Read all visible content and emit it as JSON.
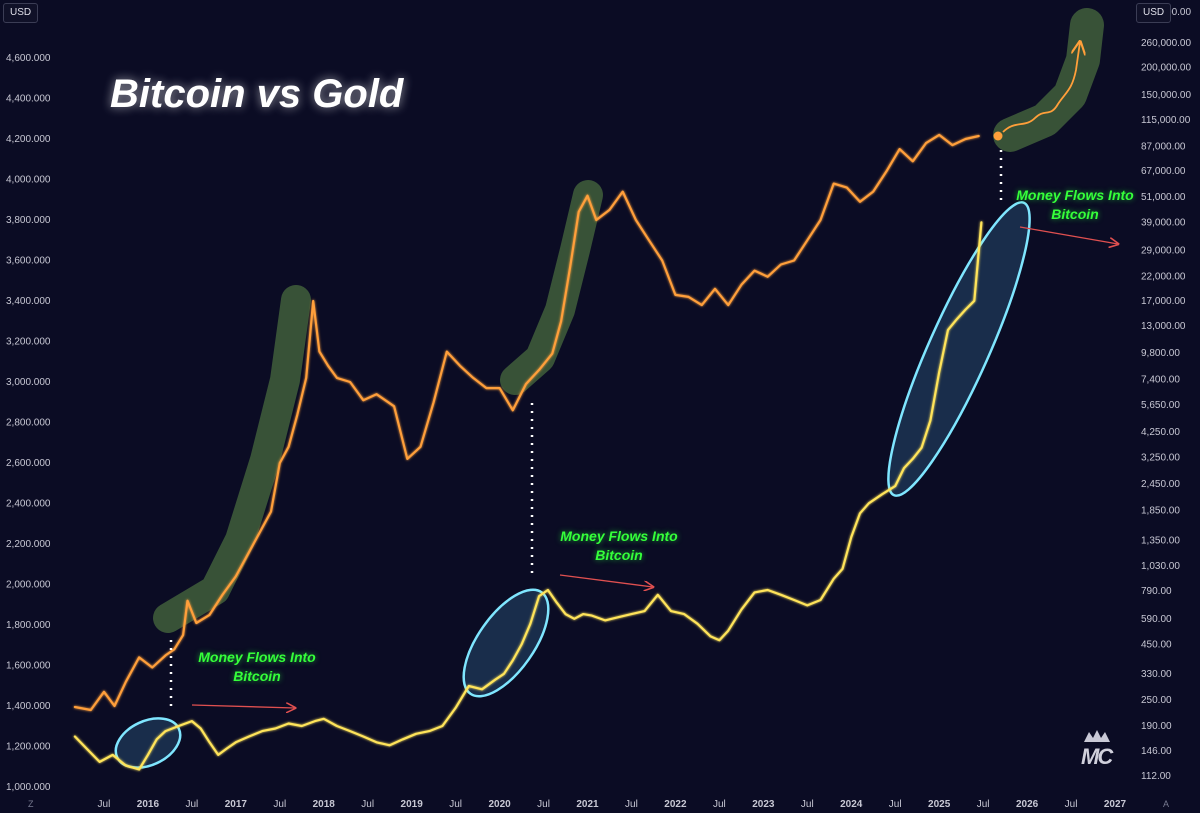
{
  "title": "Bitcoin vs Gold",
  "currency_left": "USD",
  "currency_right": "USD",
  "annotations": [
    {
      "line1": "Money Flows Into",
      "line2": "Bitcoin"
    },
    {
      "line1": "Money Flows Into",
      "line2": "Bitcoin"
    },
    {
      "line1": "Money Flows Into",
      "line2": "Bitcoin"
    }
  ],
  "corner_labels": {
    "left": "Z",
    "right": "A"
  },
  "logo_text": "MC",
  "colors": {
    "background": "#0b0c24",
    "gold_series": "#ff9f3a",
    "bitcoin_series": "#ffe45a",
    "highlight_gold": "#3d5a3a",
    "highlight_btc": "#7fe6ff",
    "annotation_text": "#35ff3a",
    "arrow": "#e05050"
  },
  "chart_data": {
    "type": "line",
    "title": "Bitcoin vs Gold",
    "left_axis": {
      "ticks": [
        1000,
        1200,
        1400,
        1600,
        1800,
        2000,
        2200,
        2400,
        2600,
        2800,
        3000,
        3200,
        3400,
        3600,
        3800,
        4000,
        4200,
        4400,
        4600
      ],
      "tick_labels": [
        "1,000.000",
        "1,200.000",
        "1,400.000",
        "1,600.000",
        "1,800.000",
        "2,000.000",
        "2,200.000",
        "2,400.000",
        "2,600.000",
        "2,800.000",
        "3,000.000",
        "3,200.000",
        "3,400.000",
        "3,600.000",
        "3,800.000",
        "4,000.000",
        "4,200.000",
        "4,400.000",
        "4,600.000"
      ],
      "range": [
        960,
        4700
      ],
      "scale": "linear"
    },
    "right_axis": {
      "ticks": [
        112,
        146,
        190,
        250,
        330,
        450,
        590,
        790,
        1030,
        1350,
        1850,
        2450,
        3250,
        4250,
        5650,
        7400,
        9800,
        13000,
        17000,
        22000,
        29000,
        39000,
        51000,
        67000,
        87000,
        115000,
        150000,
        200000,
        260000,
        360000
      ],
      "tick_labels": [
        "112.00",
        "146.00",
        "190.00",
        "250.00",
        "330.00",
        "450.00",
        "590.00",
        "790.00",
        "1,030.00",
        "1,350.00",
        "1,850.00",
        "2,450.00",
        "3,250.00",
        "4,250.00",
        "5,650.00",
        "7,400.00",
        "9,800.00",
        "13,000.00",
        "17,000.00",
        "22,000.00",
        "29,000.00",
        "39,000.00",
        "51,000.00",
        "67,000.00",
        "87,000.00",
        "115,000.00",
        "150,000.00",
        "200,000.00",
        "260,000.00",
        "360,000.00"
      ],
      "scale": "log"
    },
    "x_labels": [
      "Jul",
      "2016",
      "Jul",
      "2017",
      "Jul",
      "2018",
      "Jul",
      "2019",
      "Jul",
      "2020",
      "Jul",
      "2021",
      "Jul",
      "2022",
      "Jul",
      "2023",
      "Jul",
      "2024",
      "Jul",
      "2025",
      "Jul",
      "2026",
      "Jul",
      "2027"
    ],
    "x_label_dates": [
      2015.5,
      2016,
      2016.5,
      2017,
      2017.5,
      2018,
      2018.5,
      2019,
      2019.5,
      2020,
      2020.5,
      2021,
      2021.5,
      2022,
      2022.5,
      2023,
      2023.5,
      2024,
      2024.5,
      2025,
      2025.5,
      2026,
      2026.5,
      2027
    ],
    "series": [
      {
        "axis": "left",
        "points": [
          [
            2015.17,
            1395
          ],
          [
            2015.35,
            1380
          ],
          [
            2015.5,
            1470
          ],
          [
            2015.62,
            1400
          ],
          [
            2015.75,
            1520
          ],
          [
            2015.9,
            1640
          ],
          [
            2016.05,
            1590
          ],
          [
            2016.2,
            1650
          ],
          [
            2016.3,
            1680
          ],
          [
            2016.4,
            1750
          ],
          [
            2016.45,
            1920
          ],
          [
            2016.55,
            1810
          ],
          [
            2016.7,
            1850
          ],
          [
            2016.85,
            1950
          ],
          [
            2017.0,
            2040
          ],
          [
            2017.15,
            2160
          ],
          [
            2017.3,
            2280
          ],
          [
            2017.4,
            2360
          ],
          [
            2017.5,
            2600
          ],
          [
            2017.6,
            2680
          ],
          [
            2017.7,
            2840
          ],
          [
            2017.8,
            3020
          ],
          [
            2017.88,
            3400
          ],
          [
            2017.95,
            3150
          ],
          [
            2018.05,
            3080
          ],
          [
            2018.15,
            3020
          ],
          [
            2018.3,
            3000
          ],
          [
            2018.45,
            2910
          ],
          [
            2018.6,
            2940
          ],
          [
            2018.8,
            2880
          ],
          [
            2018.95,
            2620
          ],
          [
            2019.1,
            2680
          ],
          [
            2019.25,
            2900
          ],
          [
            2019.4,
            3150
          ],
          [
            2019.55,
            3080
          ],
          [
            2019.7,
            3020
          ],
          [
            2019.85,
            2970
          ],
          [
            2020.0,
            2970
          ],
          [
            2020.15,
            2860
          ],
          [
            2020.3,
            2990
          ],
          [
            2020.45,
            3060
          ],
          [
            2020.6,
            3140
          ],
          [
            2020.7,
            3300
          ],
          [
            2020.8,
            3560
          ],
          [
            2020.9,
            3840
          ],
          [
            2021.0,
            3920
          ],
          [
            2021.1,
            3800
          ],
          [
            2021.25,
            3850
          ],
          [
            2021.4,
            3940
          ],
          [
            2021.55,
            3800
          ],
          [
            2021.7,
            3700
          ],
          [
            2021.85,
            3600
          ],
          [
            2022.0,
            3430
          ],
          [
            2022.15,
            3420
          ],
          [
            2022.3,
            3380
          ],
          [
            2022.45,
            3460
          ],
          [
            2022.6,
            3380
          ],
          [
            2022.75,
            3480
          ],
          [
            2022.9,
            3550
          ],
          [
            2023.05,
            3520
          ],
          [
            2023.2,
            3580
          ],
          [
            2023.35,
            3600
          ],
          [
            2023.5,
            3700
          ],
          [
            2023.65,
            3800
          ],
          [
            2023.8,
            3980
          ],
          [
            2023.95,
            3960
          ],
          [
            2024.1,
            3890
          ],
          [
            2024.25,
            3940
          ],
          [
            2024.4,
            4040
          ],
          [
            2024.55,
            4150
          ],
          [
            2024.7,
            4090
          ],
          [
            2024.85,
            4180
          ],
          [
            2025.0,
            4220
          ],
          [
            2025.15,
            4170
          ],
          [
            2025.3,
            4200
          ],
          [
            2025.45,
            4215
          ]
        ]
      },
      {
        "axis": "right",
        "points": [
          [
            2015.17,
            170
          ],
          [
            2015.3,
            150
          ],
          [
            2015.45,
            130
          ],
          [
            2015.6,
            140
          ],
          [
            2015.75,
            125
          ],
          [
            2015.9,
            120
          ],
          [
            2016.0,
            140
          ],
          [
            2016.1,
            165
          ],
          [
            2016.2,
            180
          ],
          [
            2016.35,
            190
          ],
          [
            2016.5,
            200
          ],
          [
            2016.6,
            185
          ],
          [
            2016.7,
            160
          ],
          [
            2016.8,
            140
          ],
          [
            2016.9,
            150
          ],
          [
            2017.0,
            160
          ],
          [
            2017.15,
            170
          ],
          [
            2017.3,
            180
          ],
          [
            2017.45,
            185
          ],
          [
            2017.6,
            195
          ],
          [
            2017.75,
            190
          ],
          [
            2017.9,
            200
          ],
          [
            2018.0,
            205
          ],
          [
            2018.15,
            190
          ],
          [
            2018.3,
            180
          ],
          [
            2018.45,
            170
          ],
          [
            2018.6,
            160
          ],
          [
            2018.75,
            155
          ],
          [
            2018.9,
            165
          ],
          [
            2019.05,
            175
          ],
          [
            2019.2,
            180
          ],
          [
            2019.35,
            190
          ],
          [
            2019.5,
            230
          ],
          [
            2019.65,
            290
          ],
          [
            2019.8,
            280
          ],
          [
            2019.95,
            310
          ],
          [
            2020.05,
            330
          ],
          [
            2020.15,
            380
          ],
          [
            2020.25,
            450
          ],
          [
            2020.35,
            560
          ],
          [
            2020.45,
            750
          ],
          [
            2020.55,
            800
          ],
          [
            2020.65,
            700
          ],
          [
            2020.75,
            620
          ],
          [
            2020.85,
            590
          ],
          [
            2020.95,
            620
          ],
          [
            2021.05,
            610
          ],
          [
            2021.2,
            580
          ],
          [
            2021.35,
            600
          ],
          [
            2021.5,
            620
          ],
          [
            2021.65,
            640
          ],
          [
            2021.8,
            760
          ],
          [
            2021.95,
            640
          ],
          [
            2022.1,
            620
          ],
          [
            2022.25,
            560
          ],
          [
            2022.4,
            490
          ],
          [
            2022.5,
            470
          ],
          [
            2022.6,
            520
          ],
          [
            2022.75,
            650
          ],
          [
            2022.9,
            780
          ],
          [
            2023.05,
            800
          ],
          [
            2023.2,
            760
          ],
          [
            2023.35,
            720
          ],
          [
            2023.5,
            680
          ],
          [
            2023.65,
            720
          ],
          [
            2023.8,
            900
          ],
          [
            2023.9,
            1000
          ],
          [
            2024.0,
            1400
          ],
          [
            2024.1,
            1800
          ],
          [
            2024.2,
            2000
          ],
          [
            2024.35,
            2200
          ],
          [
            2024.5,
            2400
          ],
          [
            2024.6,
            2900
          ],
          [
            2024.7,
            3200
          ],
          [
            2024.8,
            3600
          ],
          [
            2024.9,
            4800
          ],
          [
            2025.0,
            8000
          ],
          [
            2025.1,
            12500
          ],
          [
            2025.2,
            14000
          ],
          [
            2025.3,
            15500
          ],
          [
            2025.4,
            17000
          ],
          [
            2025.48,
            39000
          ]
        ]
      }
    ]
  }
}
